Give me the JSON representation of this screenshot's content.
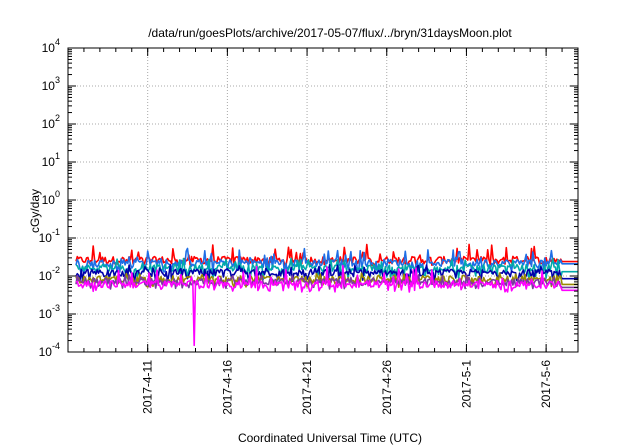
{
  "chart_data": {
    "type": "line",
    "title": "/data/run/goesPlots/archive/2017-05-07/flux/../bryn/31daysMoon.plot",
    "xlabel": "Coordinated Universal Time (UTC)",
    "ylabel": "cGy/day",
    "yscale": "log",
    "ylim": [
      0.0001,
      10000
    ],
    "xlim": [
      "2017-04-06",
      "2017-05-08"
    ],
    "grid": true,
    "legend": "none",
    "y_ticks": [
      {
        "base": "10",
        "exp": "-4"
      },
      {
        "base": "10",
        "exp": "-3"
      },
      {
        "base": "10",
        "exp": "-2"
      },
      {
        "base": "10",
        "exp": "-1"
      },
      {
        "base": "10",
        "exp": "0"
      },
      {
        "base": "10",
        "exp": "1"
      },
      {
        "base": "10",
        "exp": "2"
      },
      {
        "base": "10",
        "exp": "3"
      },
      {
        "base": "10",
        "exp": "4"
      }
    ],
    "x_ticks": [
      "2017-4-11",
      "2017-4-16",
      "2017-4-21",
      "2017-4-26",
      "2017-5-1",
      "2017-5-6"
    ],
    "series": [
      {
        "color": "#ff0000",
        "baseline": 0.026,
        "spike_max": 0.07,
        "dip_min": 0.018,
        "end_level": 0.024,
        "end_start": "2017-05-07"
      },
      {
        "color": "#1e6ee6",
        "baseline": 0.022,
        "spike_max": 0.055,
        "dip_min": 0.011,
        "end_level": 0.021,
        "end_start": "2017-05-07"
      },
      {
        "color": "#00aaaa",
        "baseline": 0.016,
        "spike_max": 0.03,
        "dip_min": 0.008,
        "end_level": 0.013,
        "end_start": "2017-05-07"
      },
      {
        "color": "#0000aa",
        "baseline": 0.012,
        "spike_max": 0.02,
        "dip_min": 0.0065,
        "end_level": 0.0085,
        "end_start": "2017-05-07"
      },
      {
        "color": "#9a8a00",
        "baseline": 0.008,
        "spike_max": 0.012,
        "dip_min": 0.005,
        "end_level": 0.006,
        "end_start": "2017-05-07"
      },
      {
        "color": "#7a3aa0",
        "baseline": 0.007,
        "spike_max": 0.011,
        "dip_min": 0.0045,
        "end_level": 0.005,
        "end_start": "2017-05-07"
      },
      {
        "color": "#ff00ff",
        "baseline": 0.006,
        "spike_max": 0.02,
        "dip_min": 0.0038,
        "end_level": 0.0042,
        "end_start": "2017-05-07",
        "min_value": 0.00015,
        "min_at": "2017-04-13T22:00"
      }
    ]
  }
}
